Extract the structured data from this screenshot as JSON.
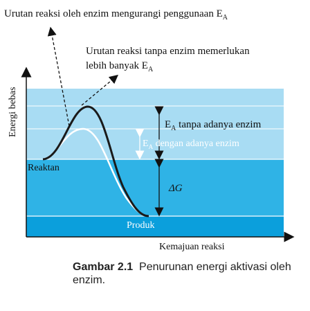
{
  "labels": {
    "top_annotation_main": "Urutan reaksi oleh enzim mengurangi penggunaan E",
    "top_annotation_sub": "A",
    "second_annotation_line1": "Urutan reaksi tanpa enzim memerlukan",
    "second_annotation_line2_main": "lebih banyak E",
    "second_annotation_line2_sub": "A",
    "y_axis": "Energi bebas",
    "x_axis": "Kemajuan reaksi",
    "reactant": "Reaktan",
    "product": "Produk",
    "ea_no_enzyme_main": "E",
    "ea_no_enzyme_sub": "A",
    "ea_no_enzyme_rest": " tanpa adanya enzim",
    "ea_enzyme_main": "E",
    "ea_enzyme_sub": "A",
    "ea_enzyme_rest": " dengan adanya enzim",
    "delta_g": "ΔG"
  },
  "caption": {
    "label": "Gambar 2.1",
    "text": "Penurunan energi aktivasi oleh  enzim."
  },
  "colors": {
    "band_light": "#a8dcf3",
    "band_mid": "#2fb3e6",
    "band_dark": "#0b9fdc",
    "curve_no_enzyme": "#1a1a1a",
    "curve_enzyme": "#ffffff"
  }
}
